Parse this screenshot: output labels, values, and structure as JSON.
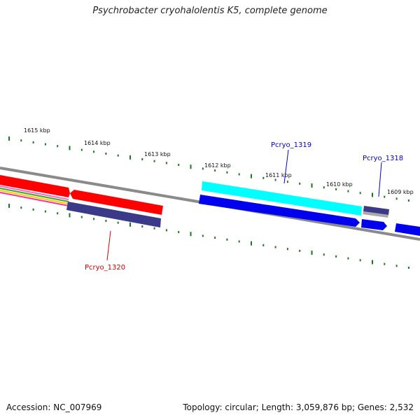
{
  "title": "Psychrobacter cryohalolentis K5, complete genome",
  "footer": {
    "accession": "Accession: NC_007969",
    "topology": "Topology: circular; Length: 3,059,876 bp; Genes: 2,532"
  },
  "scale_labels": [
    "1615 kbp",
    "1614 kbp",
    "1613 kbp",
    "1612 kbp",
    "1611 kbp",
    "1610 kbp",
    "1609 kbp"
  ],
  "gene_labels": [
    {
      "text": "Pcryo_1319",
      "color": "#0000cc"
    },
    {
      "text": "Pcryo_1318",
      "color": "#0000cc"
    },
    {
      "text": "Pcryo_1320",
      "color": "#cc0000"
    }
  ],
  "colors": {
    "backbone": "#8c8c8c",
    "tick": "#1a7a1a",
    "red_gene": "#ff0000",
    "blue_gene": "#0000ee",
    "cyan_gene": "#00ffff",
    "navy_gene": "#3a3a88"
  }
}
